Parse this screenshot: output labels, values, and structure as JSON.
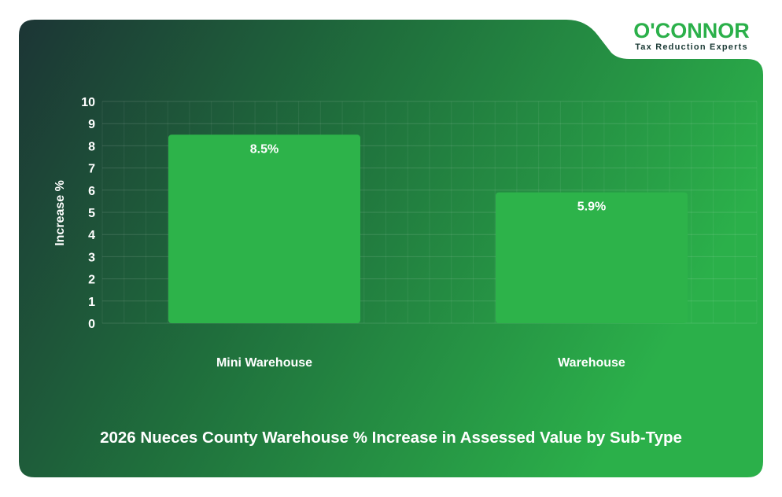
{
  "brand": {
    "logo_text": "O'CONNOR",
    "tagline": "Tax Reduction Experts",
    "colors": {
      "green": "#2bb04a",
      "dark": "#1b3a35",
      "text": "#ffffff"
    }
  },
  "chart_data": {
    "type": "bar",
    "title": "2026 Nueces County Warehouse % Increase in Assessed Value by Sub-Type",
    "ylabel": "Increase %",
    "xlabel": "",
    "categories": [
      "Mini Warehouse",
      "Warehouse"
    ],
    "values": [
      8.5,
      5.9
    ],
    "data_labels": [
      "8.5%",
      "5.9%"
    ],
    "ylim": [
      0,
      10
    ],
    "yticks": [
      "0",
      "1",
      "2",
      "3",
      "4",
      "5",
      "6",
      "7",
      "8",
      "9",
      "10"
    ],
    "grid": true,
    "legend": "none",
    "bar_color": "#2db34a"
  }
}
